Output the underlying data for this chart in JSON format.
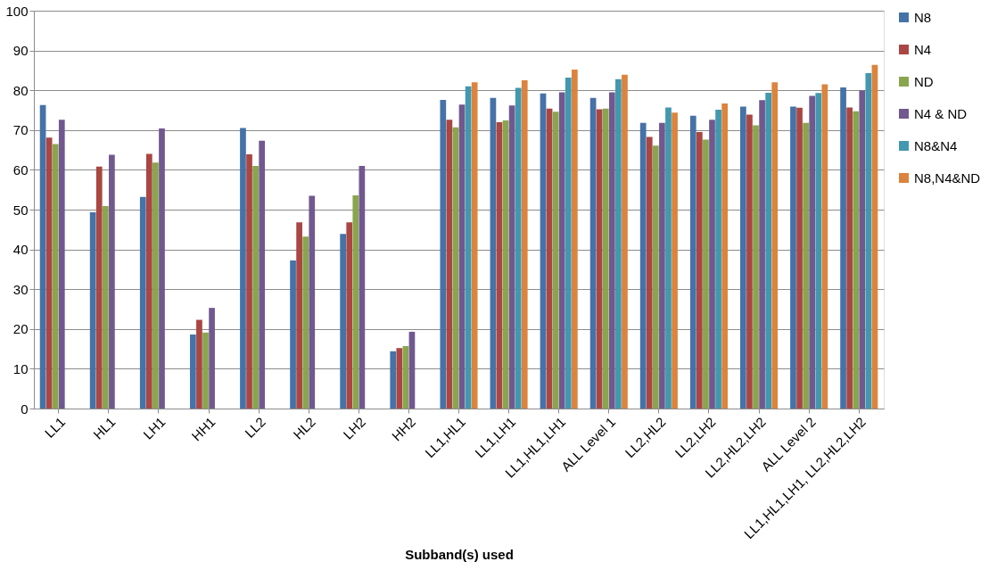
{
  "chart_data": {
    "type": "bar",
    "xlabel": "Subband(s) used",
    "categories": [
      "LL1",
      "HL1",
      "LH1",
      "HH1",
      "LL2",
      "HL2",
      "LH2",
      "HH2",
      "LL1,HL1",
      "LL1,LH1",
      "LL1,HL1,LH1",
      "ALL Level 1",
      "LL2,HL2",
      "LL2,LH2",
      "LL2,HL2,LH2",
      "ALL Level 2",
      "LL1,HL1,LH1, LL2,HL2,LH2"
    ],
    "series": [
      {
        "name": "N8",
        "color": "#4572a7",
        "values": [
          76.3,
          49.3,
          53.2,
          18.6,
          70.5,
          37.2,
          43.9,
          14.4,
          77.6,
          78.1,
          79.2,
          78.1,
          71.8,
          73.6,
          75.9,
          75.9,
          80.7
        ]
      },
      {
        "name": "N4",
        "color": "#aa4643",
        "values": [
          68.1,
          60.8,
          64.0,
          22.3,
          63.9,
          46.8,
          46.8,
          15.2,
          72.6,
          72.0,
          75.4,
          75.2,
          68.3,
          69.5,
          73.9,
          75.6,
          75.7
        ]
      },
      {
        "name": "ND",
        "color": "#89a54e",
        "values": [
          66.5,
          50.9,
          61.8,
          19.1,
          61.0,
          43.2,
          53.6,
          15.7,
          70.7,
          72.4,
          74.6,
          75.4,
          66.1,
          67.6,
          71.2,
          71.8,
          74.7
        ]
      },
      {
        "name": "N4 & ND",
        "color": "#71588f",
        "values": [
          72.6,
          63.8,
          70.4,
          25.3,
          67.3,
          53.5,
          61.0,
          19.3,
          76.4,
          76.2,
          79.5,
          79.5,
          71.8,
          72.6,
          77.5,
          78.6,
          80.0
        ]
      },
      {
        "name": "N8&N4",
        "color": "#4198af",
        "values": [
          null,
          null,
          null,
          null,
          null,
          null,
          null,
          null,
          81.0,
          80.6,
          83.2,
          82.8,
          75.7,
          75.1,
          79.4,
          79.3,
          84.3
        ]
      },
      {
        "name": "N8,N4&ND",
        "color": "#db843d",
        "values": [
          null,
          null,
          null,
          null,
          null,
          null,
          null,
          null,
          82.0,
          82.5,
          85.2,
          83.9,
          74.4,
          76.7,
          82.0,
          81.5,
          86.4
        ]
      }
    ],
    "ylim": [
      0,
      100
    ],
    "yticks": [
      0,
      10,
      20,
      30,
      40,
      50,
      60,
      70,
      80,
      90,
      100
    ],
    "grid": "y",
    "legend": "right"
  }
}
